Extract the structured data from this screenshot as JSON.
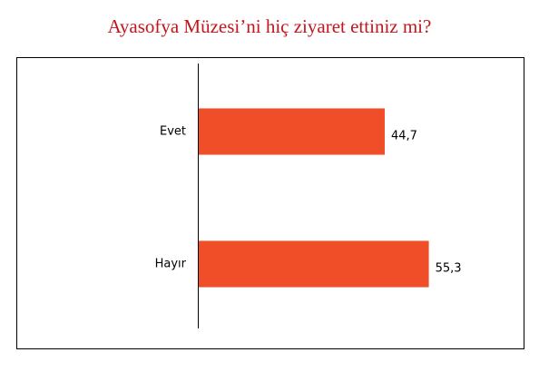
{
  "chart_data": {
    "type": "bar",
    "orientation": "horizontal",
    "title": "Ayasofya Müzesi’ni hiç ziyaret ettiniz mi?",
    "categories": [
      "Evet",
      "Hayır"
    ],
    "values": [
      44.7,
      55.3
    ],
    "value_labels": [
      "44,7",
      "55,3"
    ],
    "color": "#f04e29",
    "xlim": [
      0,
      70
    ]
  }
}
